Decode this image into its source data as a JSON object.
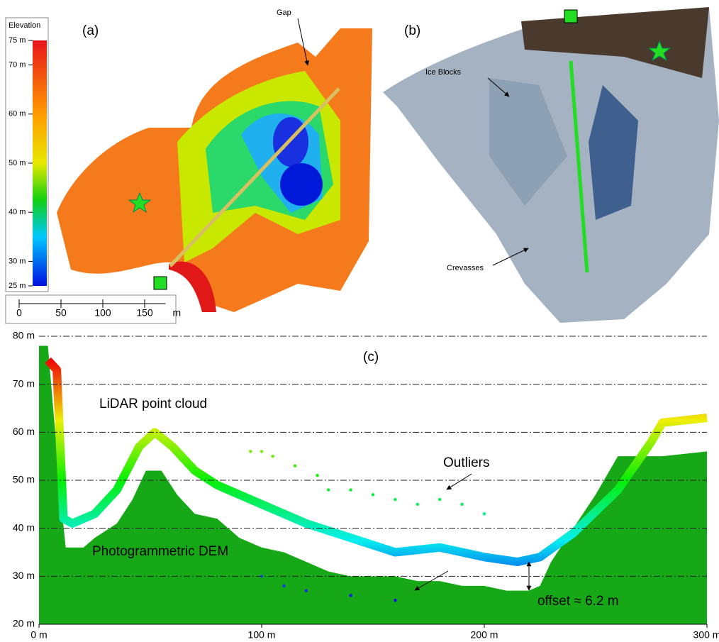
{
  "panel_a": {
    "label": "(a)",
    "gap_label": "Gap",
    "colorbar": {
      "title": "Elevation",
      "lim": [
        25,
        75
      ],
      "ticks": [
        {
          "value": 75,
          "label": "75 m"
        },
        {
          "value": 70,
          "label": "70 m"
        },
        {
          "value": 60,
          "label": "60 m"
        },
        {
          "value": 50,
          "label": "50 m"
        },
        {
          "value": 40,
          "label": "40 m"
        },
        {
          "value": 30,
          "label": "30 m"
        },
        {
          "value": 25,
          "label": "25 m"
        }
      ]
    },
    "scale_bar": {
      "ticks": [
        0,
        50,
        100,
        150
      ],
      "unit": "m"
    }
  },
  "panel_b": {
    "label": "(b)",
    "ice_label": "Ice Blocks",
    "crevasse_label": "Crevasses"
  },
  "chart_data": {
    "type": "area",
    "panel_label": "(c)",
    "xlim": [
      0,
      300
    ],
    "ylim": [
      20,
      80
    ],
    "xticks": [
      {
        "value": 0,
        "label": "0 m"
      },
      {
        "value": 100,
        "label": "100 m"
      },
      {
        "value": 200,
        "label": "200 m"
      },
      {
        "value": 300,
        "label": "300 m"
      }
    ],
    "yticks": [
      {
        "value": 20,
        "label": "20 m"
      },
      {
        "value": 30,
        "label": "30 m"
      },
      {
        "value": 40,
        "label": "40 m"
      },
      {
        "value": 50,
        "label": "50 m"
      },
      {
        "value": 60,
        "label": "60 m"
      },
      {
        "value": 70,
        "label": "70 m"
      },
      {
        "value": 80,
        "label": "80 m"
      }
    ],
    "grid": true,
    "series": [
      {
        "name": "Photogrammetric DEM",
        "type": "area",
        "color": "#17a817",
        "x": [
          0,
          4,
          10,
          12,
          20,
          25,
          35,
          42,
          48,
          55,
          62,
          70,
          80,
          90,
          100,
          110,
          120,
          130,
          140,
          150,
          160,
          170,
          180,
          190,
          200,
          210,
          220,
          225,
          230,
          240,
          250,
          260,
          280,
          300
        ],
        "values": [
          78,
          78,
          45,
          36,
          36,
          38,
          41,
          46,
          52,
          52,
          47,
          43,
          42,
          38,
          36,
          35,
          33,
          31,
          30,
          30,
          30,
          29,
          29,
          28,
          28,
          27,
          27,
          28,
          33,
          40,
          47,
          55,
          55,
          56
        ]
      },
      {
        "name": "LiDAR point cloud",
        "type": "line",
        "x": [
          4,
          8,
          11,
          15,
          25,
          35,
          45,
          52,
          60,
          70,
          80,
          100,
          120,
          140,
          160,
          180,
          200,
          215,
          225,
          240,
          260,
          275,
          280,
          300
        ],
        "values": [
          75,
          73,
          42,
          41,
          43,
          48,
          57,
          60,
          57,
          52,
          49,
          45,
          41,
          38,
          35,
          36,
          34,
          33,
          34,
          39,
          48,
          58,
          62,
          63
        ]
      },
      {
        "name": "Outliers",
        "type": "scatter",
        "x": [
          95,
          100,
          105,
          115,
          125,
          130,
          140,
          150,
          160,
          170,
          180,
          190,
          200,
          100,
          110,
          120,
          140,
          160
        ],
        "values": [
          56,
          56,
          55,
          53,
          51,
          48,
          48,
          47,
          46,
          45,
          46,
          45,
          43,
          30,
          28,
          27,
          26,
          25
        ]
      }
    ],
    "annotation": "offset ≈ 6.2 m"
  }
}
